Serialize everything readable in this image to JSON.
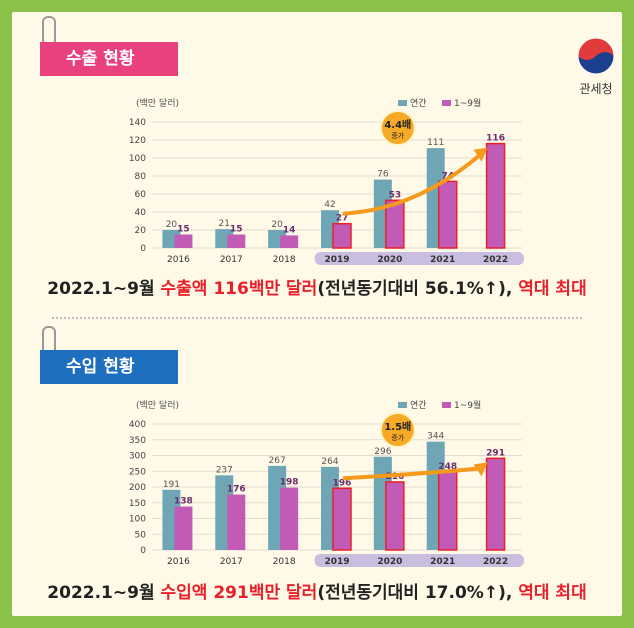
{
  "logo": {
    "name": "관세청"
  },
  "sections": [
    {
      "label": "수출 현황",
      "summary": {
        "prefix": "2022.1~9월 ",
        "highlight": "수출액 116백만 달러",
        "middle": "(전년동기대비 56.1%↑), ",
        "tail": "역대 최대"
      },
      "badge": {
        "main": "4.4배",
        "sub": "증가"
      }
    },
    {
      "label": "수입 현황",
      "summary": {
        "prefix": "2022.1~9월 ",
        "highlight": "수입액 291백만 달러",
        "middle": "(전년동기대비 17.0%↑), ",
        "tail": "역대 최대"
      },
      "badge": {
        "main": "1.5배",
        "sub": "증가"
      }
    }
  ],
  "chart_data": [
    {
      "type": "bar",
      "ylabel": "(백만 달러)",
      "categories": [
        "2016",
        "2017",
        "2018",
        "2019",
        "2020",
        "2021",
        "2022"
      ],
      "ylim": [
        0,
        140
      ],
      "yticks": [
        0,
        20,
        40,
        60,
        80,
        100,
        120,
        140
      ],
      "legend": "top-right",
      "series": [
        {
          "name": "연간",
          "color": "#6fa6b5",
          "values": [
            20,
            21,
            20,
            42,
            76,
            111,
            null
          ]
        },
        {
          "name": "1~9월",
          "color": "#c25bb5",
          "values": [
            15,
            15,
            14,
            27,
            53,
            74,
            116
          ]
        }
      ]
    },
    {
      "type": "bar",
      "ylabel": "(백만 달러)",
      "categories": [
        "2016",
        "2017",
        "2018",
        "2019",
        "2020",
        "2021",
        "2022"
      ],
      "ylim": [
        0,
        400
      ],
      "yticks": [
        0,
        50,
        100,
        150,
        200,
        250,
        300,
        350,
        400
      ],
      "legend": "top-right",
      "series": [
        {
          "name": "연간",
          "color": "#6fa6b5",
          "values": [
            191,
            237,
            267,
            264,
            296,
            344,
            null
          ]
        },
        {
          "name": "1~9월",
          "color": "#c25bb5",
          "values": [
            138,
            176,
            198,
            196,
            216,
            248,
            291
          ]
        }
      ]
    }
  ]
}
